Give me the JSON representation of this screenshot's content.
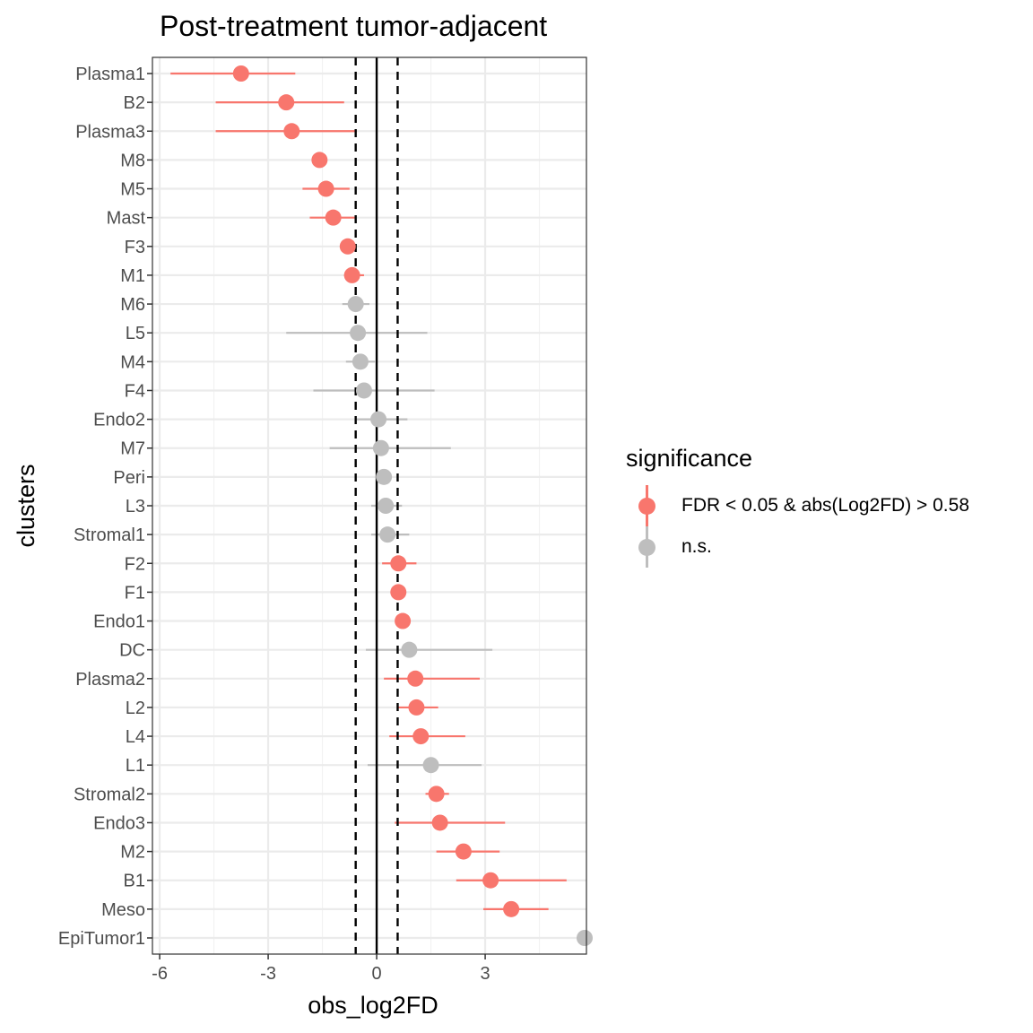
{
  "chart_data": {
    "type": "scatter",
    "title": "Post-treatment tumor-adjacent",
    "xlabel": "obs_log2FD",
    "ylabel": "clusters",
    "xlim": [
      -6.2,
      5.8
    ],
    "x_ticks": [
      -6,
      -3,
      0,
      3
    ],
    "x_tick_labels": [
      "-6",
      "-3",
      "0",
      "3"
    ],
    "vlines": [
      {
        "x": -0.58,
        "style": "dashed"
      },
      {
        "x": 0,
        "style": "solid"
      },
      {
        "x": 0.58,
        "style": "dashed"
      }
    ],
    "grid": true,
    "legend_position": "right",
    "legend_title": "significance",
    "groups": [
      {
        "name": "FDR < 0.05 & abs(Log2FD) > 0.58",
        "color": "#f8766d"
      },
      {
        "name": "n.s.",
        "color": "#bebebe"
      }
    ],
    "points": [
      {
        "cluster": "Plasma1",
        "x": -3.75,
        "lo": -5.7,
        "hi": -2.25,
        "group": 0
      },
      {
        "cluster": "B2",
        "x": -2.5,
        "lo": -4.45,
        "hi": -0.9,
        "group": 0
      },
      {
        "cluster": "Plasma3",
        "x": -2.35,
        "lo": -4.45,
        "hi": -0.55,
        "group": 0
      },
      {
        "cluster": "M8",
        "x": -1.58,
        "lo": -1.58,
        "hi": -1.58,
        "group": 0
      },
      {
        "cluster": "M5",
        "x": -1.4,
        "lo": -2.05,
        "hi": -0.75,
        "group": 0
      },
      {
        "cluster": "Mast",
        "x": -1.2,
        "lo": -1.85,
        "hi": -0.6,
        "group": 0
      },
      {
        "cluster": "F3",
        "x": -0.8,
        "lo": -0.8,
        "hi": -0.8,
        "group": 0
      },
      {
        "cluster": "M1",
        "x": -0.68,
        "lo": -0.9,
        "hi": -0.35,
        "group": 0
      },
      {
        "cluster": "M6",
        "x": -0.58,
        "lo": -0.95,
        "hi": -0.2,
        "group": 1
      },
      {
        "cluster": "L5",
        "x": -0.52,
        "lo": -2.5,
        "hi": 1.4,
        "group": 1
      },
      {
        "cluster": "M4",
        "x": -0.45,
        "lo": -0.85,
        "hi": -0.05,
        "group": 1
      },
      {
        "cluster": "F4",
        "x": -0.35,
        "lo": -1.75,
        "hi": 1.6,
        "group": 1
      },
      {
        "cluster": "Endo2",
        "x": 0.05,
        "lo": -0.55,
        "hi": 0.85,
        "group": 1
      },
      {
        "cluster": "M7",
        "x": 0.12,
        "lo": -1.3,
        "hi": 2.05,
        "group": 1
      },
      {
        "cluster": "Peri",
        "x": 0.2,
        "lo": 0.2,
        "hi": 0.2,
        "group": 1
      },
      {
        "cluster": "L3",
        "x": 0.25,
        "lo": -0.15,
        "hi": 0.7,
        "group": 1
      },
      {
        "cluster": "Stromal1",
        "x": 0.3,
        "lo": -0.15,
        "hi": 0.9,
        "group": 1
      },
      {
        "cluster": "F2",
        "x": 0.6,
        "lo": 0.15,
        "hi": 1.1,
        "group": 0
      },
      {
        "cluster": "F1",
        "x": 0.6,
        "lo": 0.6,
        "hi": 0.6,
        "group": 0
      },
      {
        "cluster": "Endo1",
        "x": 0.72,
        "lo": 0.72,
        "hi": 0.72,
        "group": 0
      },
      {
        "cluster": "DC",
        "x": 0.9,
        "lo": -0.3,
        "hi": 3.2,
        "group": 1
      },
      {
        "cluster": "Plasma2",
        "x": 1.07,
        "lo": 0.2,
        "hi": 2.85,
        "group": 0
      },
      {
        "cluster": "L2",
        "x": 1.1,
        "lo": 0.6,
        "hi": 1.7,
        "group": 0
      },
      {
        "cluster": "L4",
        "x": 1.22,
        "lo": 0.35,
        "hi": 2.45,
        "group": 0
      },
      {
        "cluster": "L1",
        "x": 1.5,
        "lo": -0.25,
        "hi": 2.9,
        "group": 1
      },
      {
        "cluster": "Stromal2",
        "x": 1.65,
        "lo": 1.35,
        "hi": 2.0,
        "group": 0
      },
      {
        "cluster": "Endo3",
        "x": 1.75,
        "lo": 0.5,
        "hi": 3.55,
        "group": 0
      },
      {
        "cluster": "M2",
        "x": 2.4,
        "lo": 1.65,
        "hi": 3.4,
        "group": 0
      },
      {
        "cluster": "B1",
        "x": 3.15,
        "lo": 2.2,
        "hi": 5.25,
        "group": 0
      },
      {
        "cluster": "Meso",
        "x": 3.72,
        "lo": 2.95,
        "hi": 4.75,
        "group": 0
      },
      {
        "cluster": "EpiTumor1",
        "x": 5.75,
        "lo": 5.75,
        "hi": 5.75,
        "group": 1
      }
    ]
  }
}
